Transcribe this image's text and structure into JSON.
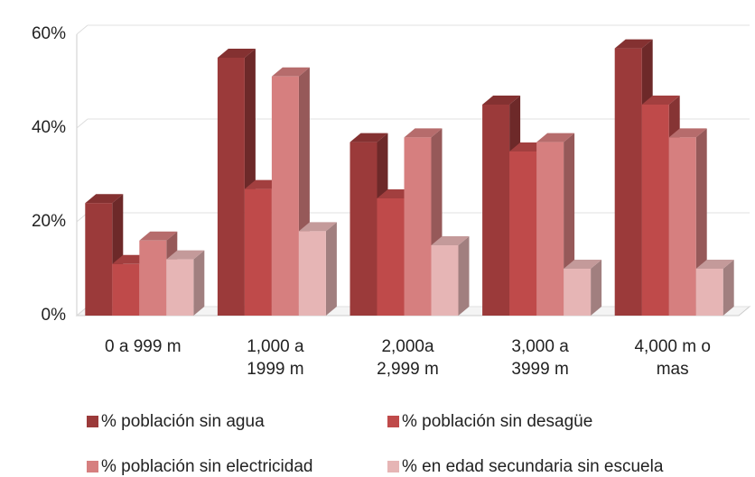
{
  "chart_data": {
    "type": "bar3d",
    "categories": [
      "0 a 999 m",
      "1,000 a\n1999 m",
      "2,000a\n2,999 m",
      "3,000 a\n3999 m",
      "4,000 m o\nmas"
    ],
    "series": [
      {
        "name": "% población sin agua",
        "color": "#9b3a3a",
        "values": [
          24,
          55,
          37,
          45,
          57
        ]
      },
      {
        "name": "% población sin desagüe",
        "color": "#bf4a4a",
        "values": [
          11,
          27,
          25,
          35,
          45
        ]
      },
      {
        "name": "% población sin electricidad",
        "color": "#d67f7f",
        "values": [
          16,
          51,
          38,
          37,
          38
        ]
      },
      {
        "name": "% en edad secundaria sin escuela",
        "color": "#e6b5b5",
        "values": [
          12,
          18,
          15,
          10,
          10
        ]
      }
    ],
    "ylim": [
      0,
      60
    ],
    "yticks": [
      {
        "value": 0,
        "label": "0%"
      },
      {
        "value": 20,
        "label": "20%"
      },
      {
        "value": 40,
        "label": "40%"
      },
      {
        "value": 60,
        "label": "60%"
      }
    ],
    "grid": true
  }
}
